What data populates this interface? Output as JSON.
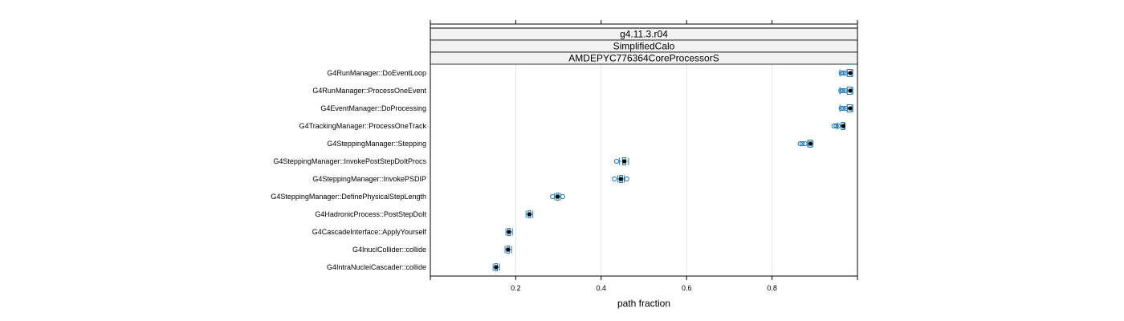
{
  "chart_data": {
    "type": "box",
    "panels": [
      "g4.11.3.r04",
      "SimplifiedCalo",
      "AMDEPYC776364CoreProcessorS"
    ],
    "xlabel": "path fraction",
    "ylabel": "",
    "xlim": [
      0.0,
      1.0
    ],
    "xticks": [
      0.2,
      0.4,
      0.6,
      0.8
    ],
    "xtick_labels": [
      "0.2",
      "0.4",
      "0.6",
      "0.8"
    ],
    "grid": true,
    "colors": {
      "box": "#1f78b4",
      "median": "#000000",
      "grid": "#e6e6e6",
      "strip": "#f2f2f2"
    },
    "categories": [
      "G4RunManager::DoEventLoop",
      "G4RunManager::ProcessOneEvent",
      "G4EventManager::DoProcessing",
      "G4TrackingManager::ProcessOneTrack",
      "G4SteppingManager::Stepping",
      "G4SteppingManager::InvokePostStepDoItProcs",
      "G4SteppingManager::InvokePSDIP",
      "G4SteppingManager::DefinePhysicalStepLength",
      "G4HadronicProcess::PostStepDoIt",
      "G4CascadeInterface::ApplyYourself",
      "G4InuclCollider::collide",
      "G4IntraNucleiCascader::collide"
    ],
    "boxes": [
      {
        "min": 0.959,
        "q1": 0.976,
        "median": 0.983,
        "q3": 0.987,
        "max": 0.989,
        "outliers": [
          0.962,
          0.967,
          0.972
        ]
      },
      {
        "min": 0.959,
        "q1": 0.976,
        "median": 0.983,
        "q3": 0.987,
        "max": 0.989,
        "outliers": [
          0.961,
          0.966,
          0.972
        ]
      },
      {
        "min": 0.959,
        "q1": 0.976,
        "median": 0.983,
        "q3": 0.987,
        "max": 0.989,
        "outliers": [
          0.962,
          0.967,
          0.973
        ]
      },
      {
        "min": 0.953,
        "q1": 0.962,
        "median": 0.967,
        "q3": 0.969,
        "max": 0.971,
        "outliers": [
          0.945,
          0.95,
          0.955
        ]
      },
      {
        "min": 0.883,
        "q1": 0.886,
        "median": 0.89,
        "q3": 0.893,
        "max": 0.896,
        "outliers": [
          0.866,
          0.871,
          0.877
        ]
      },
      {
        "min": 0.443,
        "q1": 0.45,
        "median": 0.454,
        "q3": 0.458,
        "max": 0.464,
        "outliers": [
          0.436
        ]
      },
      {
        "min": 0.439,
        "q1": 0.443,
        "median": 0.446,
        "q3": 0.45,
        "max": 0.454,
        "outliers": [
          0.431,
          0.46
        ]
      },
      {
        "min": 0.291,
        "q1": 0.295,
        "median": 0.298,
        "q3": 0.301,
        "max": 0.305,
        "outliers": [
          0.286,
          0.31
        ]
      },
      {
        "min": 0.224,
        "q1": 0.229,
        "median": 0.232,
        "q3": 0.235,
        "max": 0.24,
        "outliers": []
      },
      {
        "min": 0.177,
        "q1": 0.181,
        "median": 0.184,
        "q3": 0.187,
        "max": 0.192,
        "outliers": []
      },
      {
        "min": 0.175,
        "q1": 0.179,
        "median": 0.182,
        "q3": 0.185,
        "max": 0.19,
        "outliers": []
      },
      {
        "min": 0.147,
        "q1": 0.151,
        "median": 0.154,
        "q3": 0.157,
        "max": 0.162,
        "outliers": []
      }
    ]
  }
}
